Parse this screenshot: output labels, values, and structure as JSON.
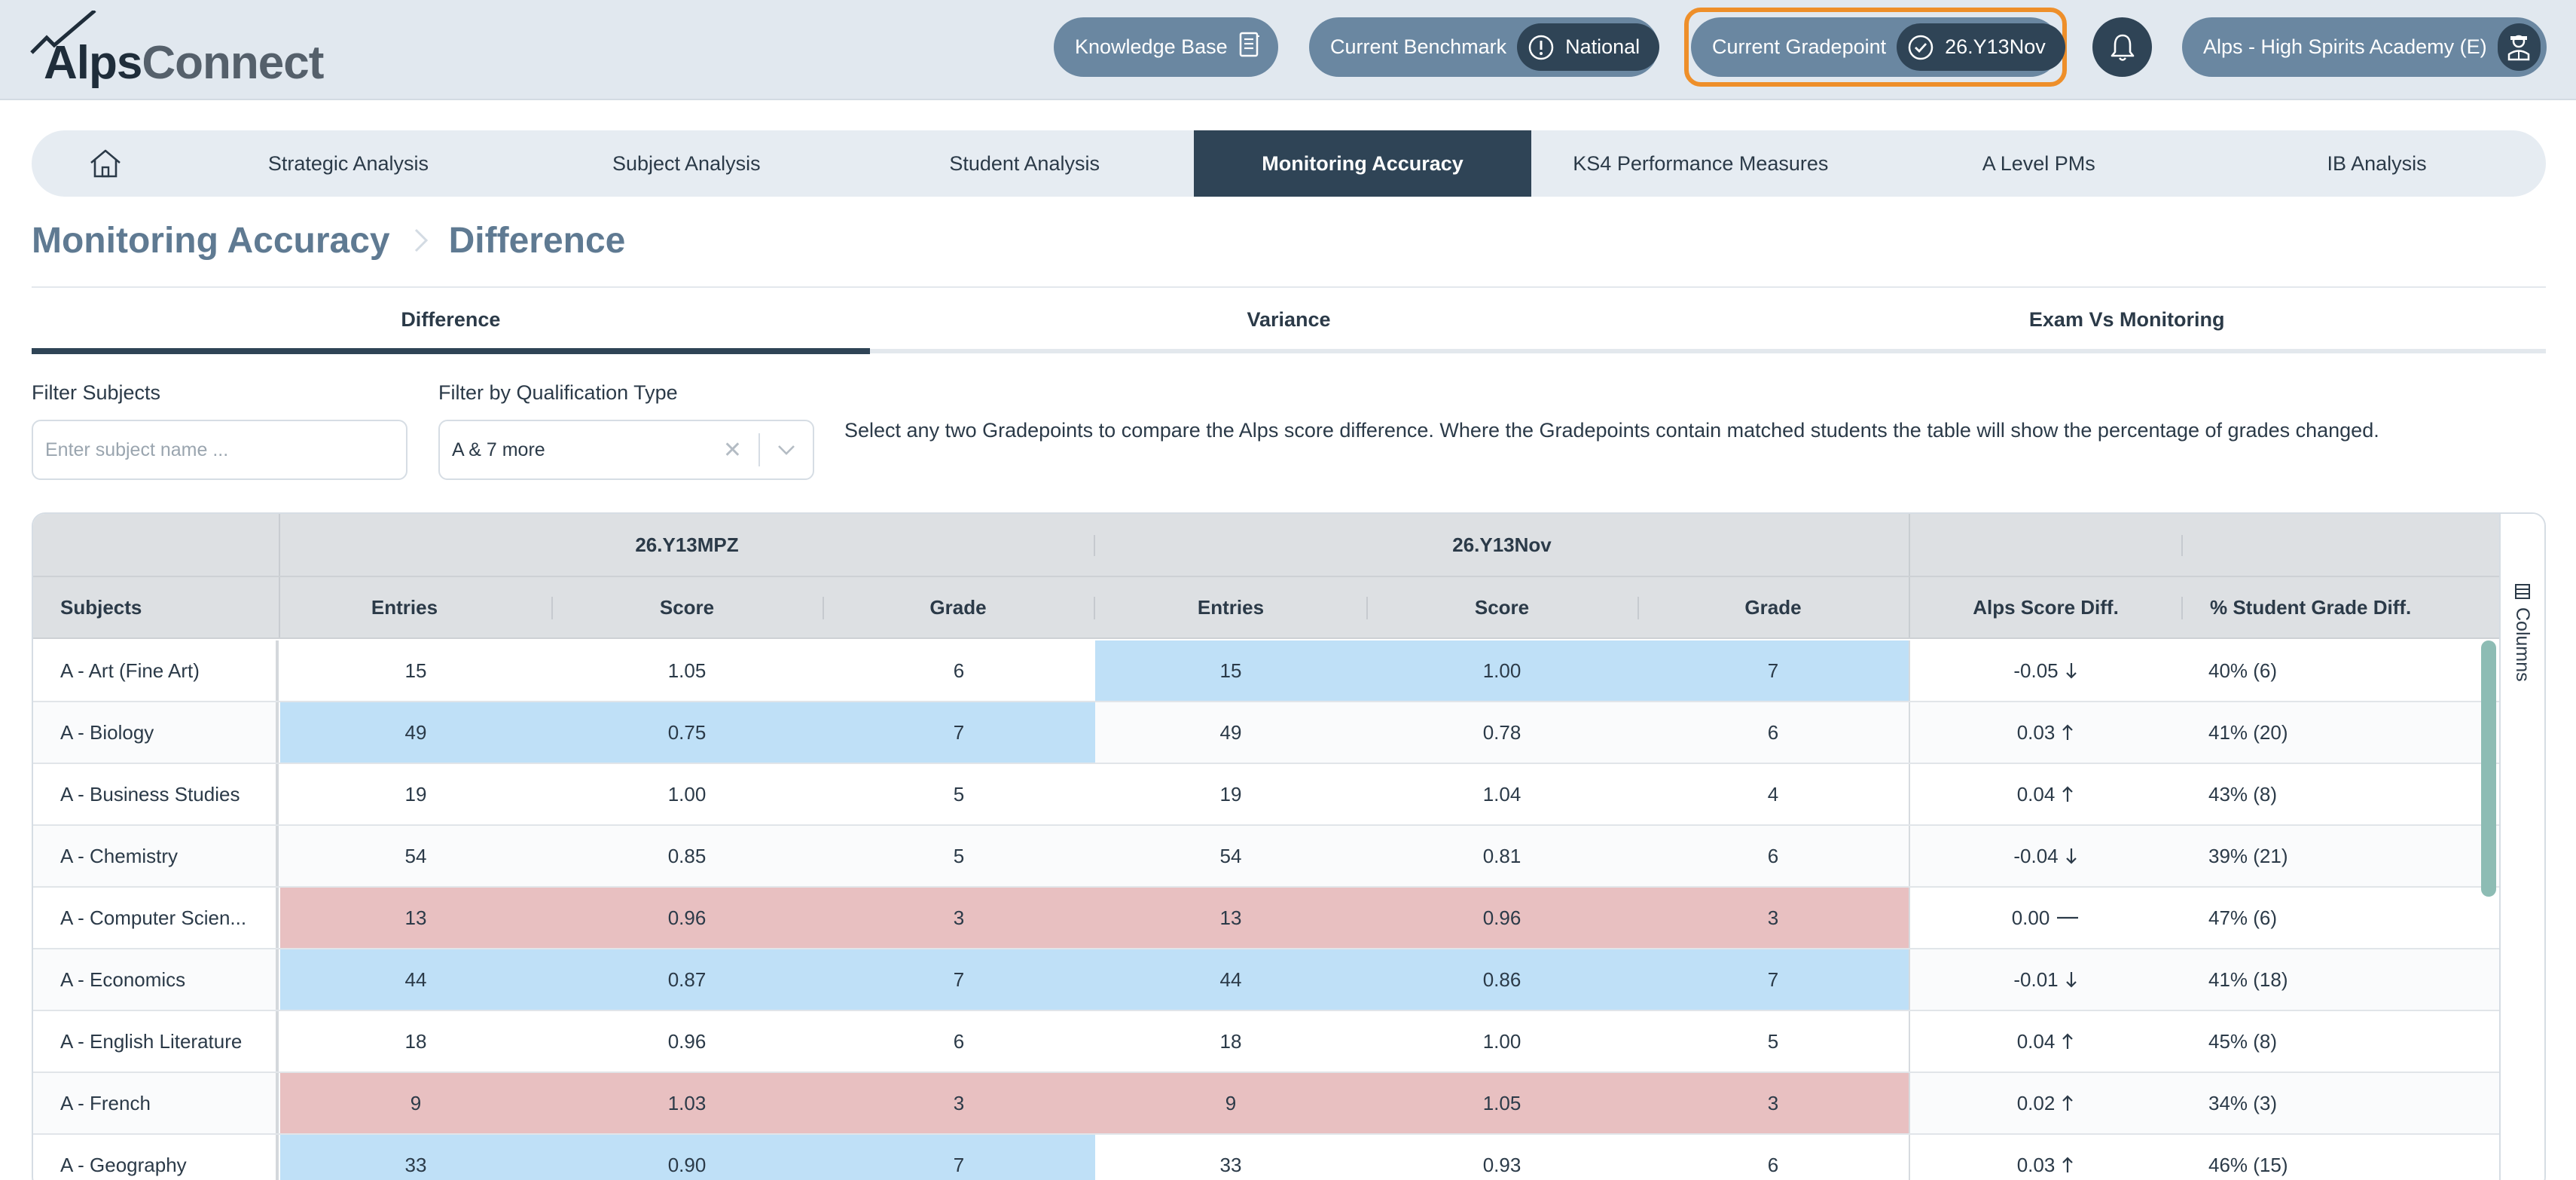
{
  "app": {
    "logo_alps": "Alps",
    "logo_connect": "Connect"
  },
  "header": {
    "knowledge_base": "Knowledge Base",
    "benchmark_label": "Current Benchmark",
    "benchmark_value": "National",
    "gradepoint_label": "Current Gradepoint",
    "gradepoint_value": "26.Y13Nov",
    "school": "Alps - High Spirits Academy (E)",
    "icons": [
      "book-icon",
      "info-icon",
      "check-circle-icon",
      "bell-icon",
      "user-avatar-icon"
    ],
    "colors": {
      "pill": "#6a87a1",
      "pill_inner": "#2f4456",
      "highlight": "#ee8f2a"
    }
  },
  "nav": {
    "items": [
      {
        "label": "Strategic Analysis"
      },
      {
        "label": "Subject Analysis"
      },
      {
        "label": "Student Analysis"
      },
      {
        "label": "Monitoring Accuracy",
        "active": true
      },
      {
        "label": "KS4 Performance Measures"
      },
      {
        "label": "A Level PMs"
      },
      {
        "label": "IB Analysis"
      }
    ]
  },
  "breadcrumb": {
    "section": "Monitoring Accuracy",
    "page": "Difference"
  },
  "tabs": [
    {
      "label": "Difference",
      "active": true
    },
    {
      "label": "Variance"
    },
    {
      "label": "Exam Vs Monitoring"
    }
  ],
  "filters": {
    "subjects_label": "Filter Subjects",
    "subjects_placeholder": "Enter subject name ...",
    "qual_label": "Filter by Qualification Type",
    "qual_value": "A & 7 more",
    "help": "Select any two Gradepoints to compare the Alps score difference. Where the Gradepoints contain matched students the table will show the percentage of grades changed."
  },
  "table": {
    "group_a": "26.Y13MPZ",
    "group_b": "26.Y13Nov",
    "columns": {
      "subjects": "Subjects",
      "entries": "Entries",
      "score": "Score",
      "grade": "Grade",
      "alps_diff": "Alps Score Diff.",
      "pct_diff": "% Student Grade Diff."
    },
    "columns_toggle": "Columns",
    "rows": [
      {
        "subject": "A - Art (Fine Art)",
        "a_entries": "15",
        "a_score": "1.05",
        "a_grade": "6",
        "b_entries": "15",
        "b_score": "1.00",
        "b_grade": "7",
        "diff": "-0.05",
        "dir": "down",
        "pct": "40% (6)",
        "a_hl": "",
        "b_hl": "blue"
      },
      {
        "subject": "A - Biology",
        "a_entries": "49",
        "a_score": "0.75",
        "a_grade": "7",
        "b_entries": "49",
        "b_score": "0.78",
        "b_grade": "6",
        "diff": "0.03",
        "dir": "up",
        "pct": "41% (20)",
        "a_hl": "blue",
        "b_hl": ""
      },
      {
        "subject": "A - Business Studies",
        "a_entries": "19",
        "a_score": "1.00",
        "a_grade": "5",
        "b_entries": "19",
        "b_score": "1.04",
        "b_grade": "4",
        "diff": "0.04",
        "dir": "up",
        "pct": "43% (8)",
        "a_hl": "",
        "b_hl": ""
      },
      {
        "subject": "A - Chemistry",
        "a_entries": "54",
        "a_score": "0.85",
        "a_grade": "5",
        "b_entries": "54",
        "b_score": "0.81",
        "b_grade": "6",
        "diff": "-0.04",
        "dir": "down",
        "pct": "39% (21)",
        "a_hl": "",
        "b_hl": ""
      },
      {
        "subject": "A - Computer Scien...",
        "a_entries": "13",
        "a_score": "0.96",
        "a_grade": "3",
        "b_entries": "13",
        "b_score": "0.96",
        "b_grade": "3",
        "diff": "0.00",
        "dir": "flat",
        "pct": "47% (6)",
        "a_hl": "red",
        "b_hl": "red"
      },
      {
        "subject": "A - Economics",
        "a_entries": "44",
        "a_score": "0.87",
        "a_grade": "7",
        "b_entries": "44",
        "b_score": "0.86",
        "b_grade": "7",
        "diff": "-0.01",
        "dir": "down",
        "pct": "41% (18)",
        "a_hl": "blue",
        "b_hl": "blue"
      },
      {
        "subject": "A - English Literature",
        "a_entries": "18",
        "a_score": "0.96",
        "a_grade": "6",
        "b_entries": "18",
        "b_score": "1.00",
        "b_grade": "5",
        "diff": "0.04",
        "dir": "up",
        "pct": "45% (8)",
        "a_hl": "",
        "b_hl": ""
      },
      {
        "subject": "A - French",
        "a_entries": "9",
        "a_score": "1.03",
        "a_grade": "3",
        "b_entries": "9",
        "b_score": "1.05",
        "b_grade": "3",
        "diff": "0.02",
        "dir": "up",
        "pct": "34% (3)",
        "a_hl": "red",
        "b_hl": "red"
      },
      {
        "subject": "A - Geography",
        "a_entries": "33",
        "a_score": "0.90",
        "a_grade": "7",
        "b_entries": "33",
        "b_score": "0.93",
        "b_grade": "6",
        "diff": "0.03",
        "dir": "up",
        "pct": "46% (15)",
        "a_hl": "blue",
        "b_hl": ""
      }
    ],
    "colors": {
      "blue": "#bfe0f7",
      "red": "#e8c0c1",
      "header": "#dde0e3",
      "scrollbar": "#8dbcb4"
    }
  }
}
